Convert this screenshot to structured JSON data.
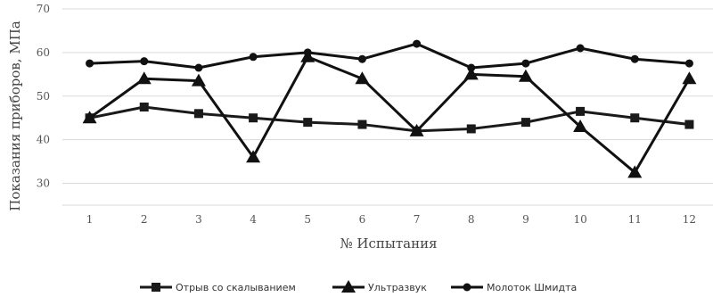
{
  "chart_data": {
    "type": "line",
    "title": "",
    "xlabel": "№ Испытания",
    "ylabel": "Показания приборов, МПа",
    "categories": [
      "1",
      "2",
      "3",
      "4",
      "5",
      "6",
      "7",
      "8",
      "9",
      "10",
      "11",
      "12"
    ],
    "yticks": [
      "30",
      "40",
      "50",
      "60",
      "70"
    ],
    "ylim": [
      25,
      70
    ],
    "grid": true,
    "legend_position": "bottom",
    "series": [
      {
        "name": "Отрыв со скалыванием",
        "marker": "square",
        "color": "#1a1a1a",
        "values": [
          45,
          47.5,
          46,
          45,
          44,
          43.5,
          42,
          42.5,
          44,
          46.5,
          45,
          43.5
        ]
      },
      {
        "name": "Ультразвук",
        "marker": "triangle",
        "color": "#111111",
        "values": [
          45,
          54,
          53.5,
          36,
          59,
          54,
          42,
          55,
          54.5,
          43,
          32.5,
          54
        ]
      },
      {
        "name": "Молоток Шмидта",
        "marker": "circle",
        "color": "#111111",
        "values": [
          57.5,
          58,
          56.5,
          59,
          60,
          58.5,
          62,
          56.5,
          57.5,
          61,
          58.5,
          57.5
        ]
      }
    ]
  }
}
